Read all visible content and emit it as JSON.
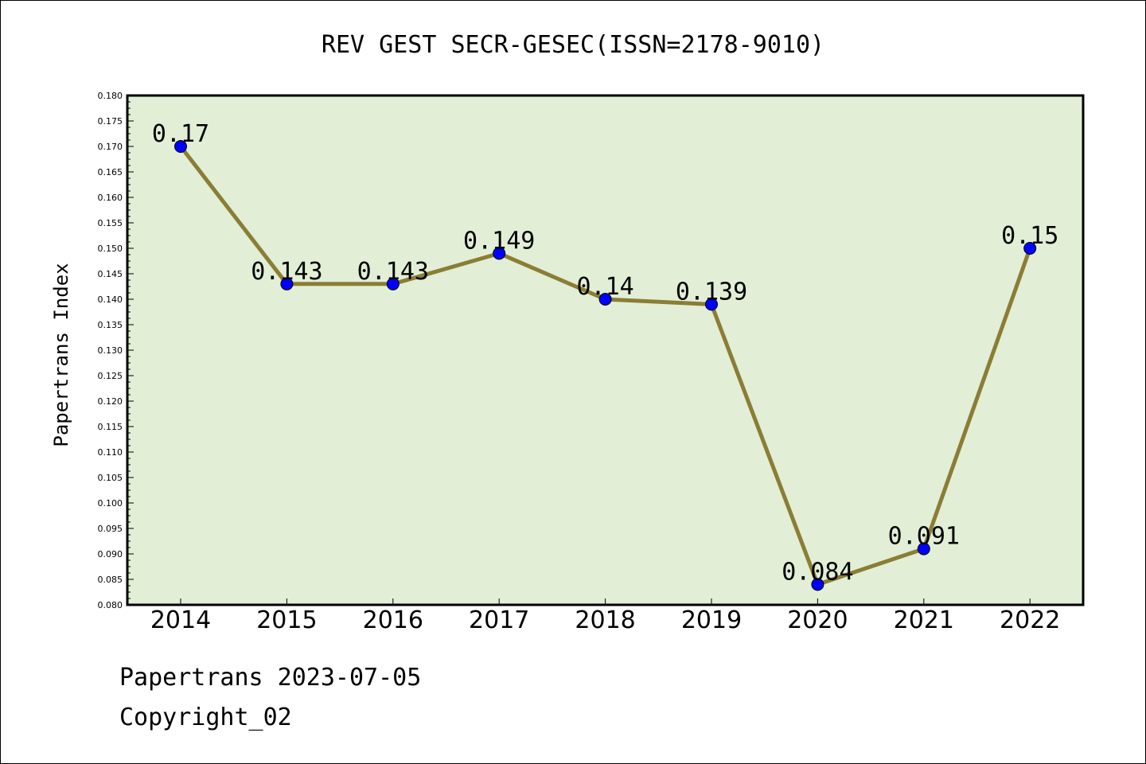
{
  "chart_data": {
    "type": "line",
    "title": "REV GEST SECR-GESEC(ISSN=2178-9010)",
    "xlabel": "",
    "ylabel": "Papertrans Index",
    "categories": [
      "2014",
      "2015",
      "2016",
      "2017",
      "2018",
      "2019",
      "2020",
      "2021",
      "2022"
    ],
    "values": [
      0.17,
      0.143,
      0.143,
      0.149,
      0.14,
      0.139,
      0.084,
      0.091,
      0.15
    ],
    "data_labels": [
      "0.17",
      "0.143",
      "0.143",
      "0.149",
      "0.14",
      "0.139",
      "0.084",
      "0.091",
      "0.15"
    ],
    "ylim": [
      0.08,
      0.18
    ],
    "ytick_step": 0.005,
    "grid": false,
    "legend": "none",
    "colors": {
      "plot_background": "#e2efd6",
      "line": "#8b7d35",
      "marker": "#0000ff"
    }
  },
  "footer": {
    "date_text": "Papertrans 2023-07-05",
    "copyright_text": "Copyright_02"
  }
}
